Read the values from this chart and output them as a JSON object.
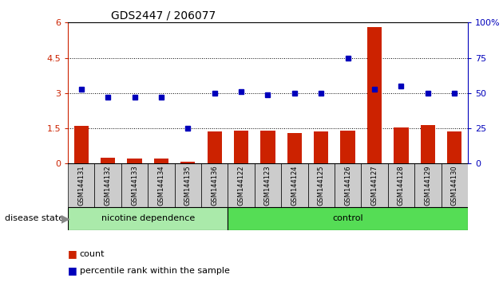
{
  "title": "GDS2447 / 206077",
  "samples": [
    "GSM144131",
    "GSM144132",
    "GSM144133",
    "GSM144134",
    "GSM144135",
    "GSM144136",
    "GSM144122",
    "GSM144123",
    "GSM144124",
    "GSM144125",
    "GSM144126",
    "GSM144127",
    "GSM144128",
    "GSM144129",
    "GSM144130"
  ],
  "count_values": [
    1.6,
    0.25,
    0.22,
    0.2,
    0.09,
    1.35,
    1.4,
    1.4,
    1.3,
    1.38,
    1.4,
    5.8,
    1.55,
    1.65,
    1.35
  ],
  "percentile_values_raw": [
    53,
    47,
    47,
    47,
    25,
    50,
    51,
    49,
    50,
    50,
    75,
    53,
    55,
    50,
    50
  ],
  "group_labels": [
    "nicotine dependence",
    "control"
  ],
  "group_sizes": [
    6,
    9
  ],
  "bar_color": "#CC2200",
  "dot_color": "#0000BB",
  "ylim_left": [
    0,
    6
  ],
  "ylim_right": [
    0,
    100
  ],
  "yticks_left": [
    0,
    1.5,
    3.0,
    4.5,
    6.0
  ],
  "ytick_labels_left": [
    "0",
    "1.5",
    "3",
    "4.5",
    "6"
  ],
  "yticks_right": [
    0,
    25,
    50,
    75,
    100
  ],
  "ytick_labels_right": [
    "0",
    "25",
    "50",
    "75",
    "100%"
  ],
  "hlines": [
    1.5,
    3.0,
    4.5
  ],
  "background_color": "#ffffff",
  "legend_count_label": "count",
  "legend_pct_label": "percentile rank within the sample",
  "sample_bg_color": "#CCCCCC",
  "group1_color": "#AAEAAA",
  "group2_color": "#55DD55"
}
